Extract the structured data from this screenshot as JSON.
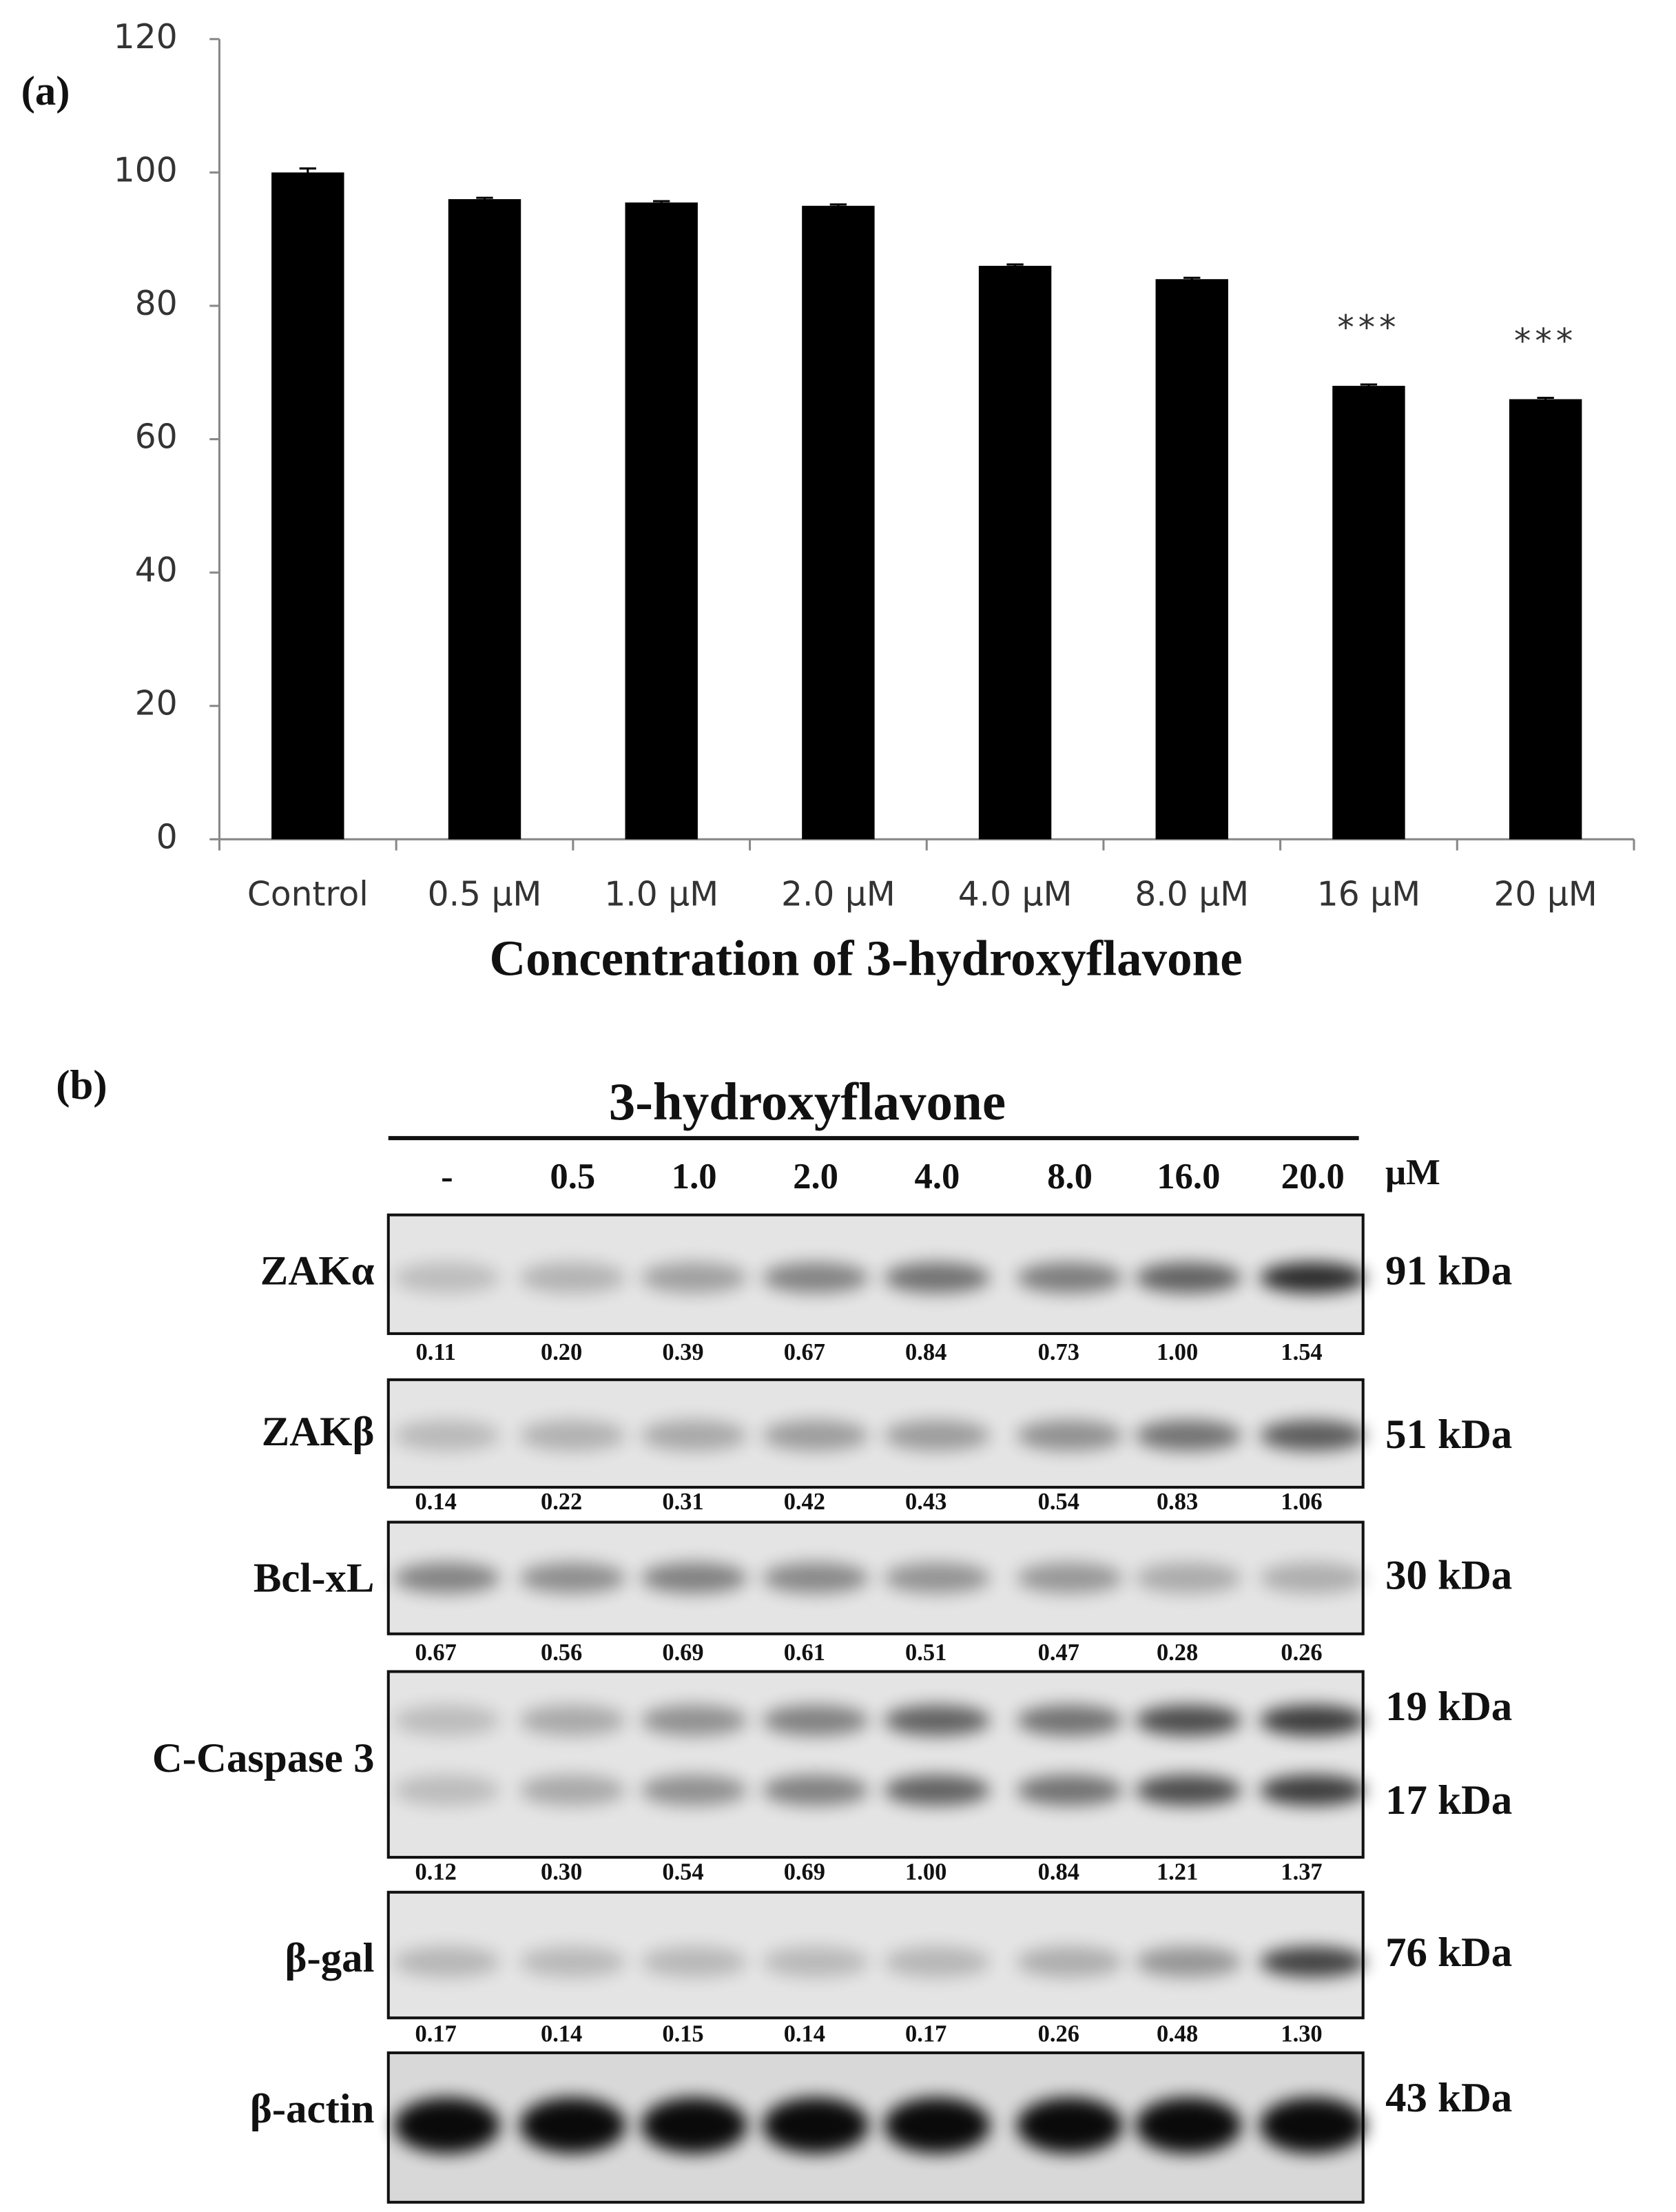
{
  "chart_data": {
    "type": "bar",
    "panel": "(a)",
    "xlabel": "Concentration of 3-hydroxyflavone",
    "categories": [
      "Control",
      "0.5 μM",
      "1.0 μM",
      "2.0 μM",
      "4.0 μM",
      "8.0 μM",
      "16 μM",
      "20 μM"
    ],
    "values": [
      100,
      96,
      95.5,
      95,
      86,
      84,
      68,
      66
    ],
    "errors": [
      0.6,
      0.2,
      0.2,
      0.2,
      0.2,
      0.2,
      0.2,
      0.2
    ],
    "annotations": [
      null,
      null,
      null,
      null,
      null,
      null,
      "***",
      "***"
    ],
    "color": "#000000",
    "ylim": [
      0,
      120
    ],
    "yticks": [
      0,
      20,
      40,
      60,
      80,
      100,
      120
    ],
    "grid": false
  },
  "blot": {
    "panel": "(b)",
    "title": "3-hydroxyflavone",
    "lanes": [
      "-",
      "0.5",
      "1.0",
      "2.0",
      "4.0",
      "8.0",
      "16.0",
      "20.0"
    ],
    "unit": "μM",
    "rows": [
      {
        "name": "ZAKα",
        "kda": [
          "91 kDa"
        ],
        "quant": [
          "0.11",
          "0.20",
          "0.39",
          "0.67",
          "0.84",
          "0.73",
          "1.00",
          "1.54"
        ]
      },
      {
        "name": "ZAKβ",
        "kda": [
          "51 kDa"
        ],
        "quant": [
          "0.14",
          "0.22",
          "0.31",
          "0.42",
          "0.43",
          "0.54",
          "0.83",
          "1.06"
        ]
      },
      {
        "name": "Bcl-xL",
        "kda": [
          "30 kDa"
        ],
        "quant": [
          "0.67",
          "0.56",
          "0.69",
          "0.61",
          "0.51",
          "0.47",
          "0.28",
          "0.26"
        ]
      },
      {
        "name": "C-Caspase 3",
        "kda": [
          "19 kDa",
          "17 kDa"
        ],
        "quant": [
          "0.12",
          "0.30",
          "0.54",
          "0.69",
          "1.00",
          "0.84",
          "1.21",
          "1.37"
        ]
      },
      {
        "name": "β-gal",
        "kda": [
          "76 kDa"
        ],
        "quant": [
          "0.17",
          "0.14",
          "0.15",
          "0.14",
          "0.17",
          "0.26",
          "0.48",
          "1.30"
        ]
      },
      {
        "name": "β-actin",
        "kda": [
          "43 kDa"
        ],
        "quant": []
      }
    ]
  }
}
